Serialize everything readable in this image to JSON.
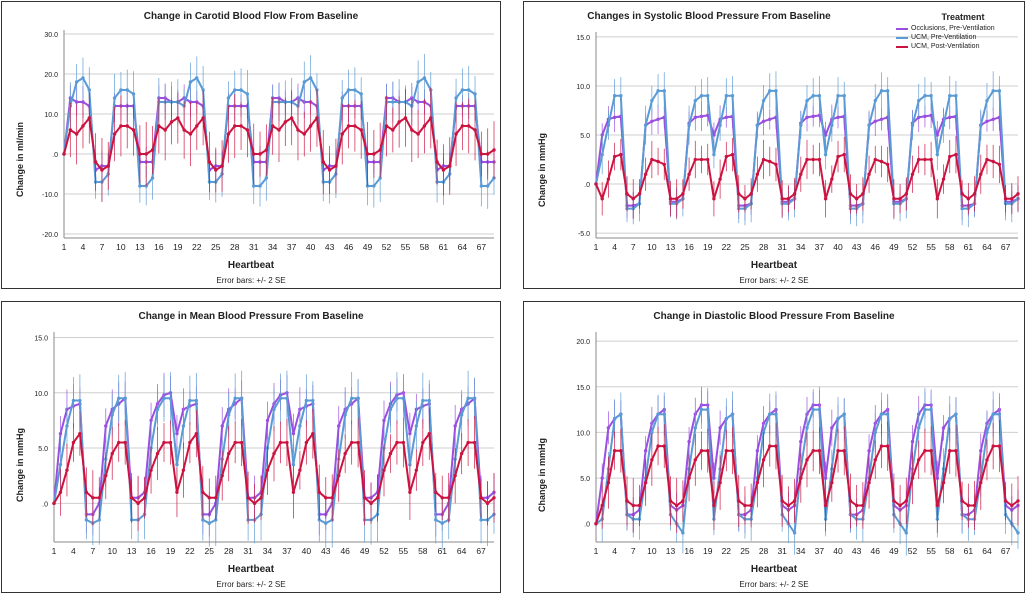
{
  "colors": {
    "series": [
      "#9b4fe0",
      "#5b9bd5",
      "#cc1340"
    ],
    "grid": "#cfcfcf",
    "text": "#222222"
  },
  "legend": {
    "title": "Treatment",
    "items": [
      "Occlusions, Pre-Ventilation",
      "UCM, Pre-Ventilation",
      "UCM, Post-Ventilation"
    ]
  },
  "chart_data": [
    {
      "type": "line",
      "title": "Change in Carotid Blood Flow From Baseline",
      "xlabel": "Heartbeat",
      "ylabel": "Change in ml/min",
      "note": "Error bars: +/- 2 SE",
      "yticks": [
        30,
        20,
        10,
        0,
        -10,
        -20
      ],
      "ytick_labels": [
        "30.0",
        "20.0",
        "10.0",
        ".0",
        "-10.0",
        "-20.0"
      ],
      "ylim": [
        -21,
        31
      ],
      "xticks": [
        "1",
        "4",
        "7",
        "10",
        "13",
        "16",
        "19",
        "22",
        "25",
        "28",
        "31",
        "34",
        "37",
        "40",
        "43",
        "46",
        "49",
        "52",
        "55",
        "58",
        "61",
        "64",
        "67"
      ],
      "x_range": [
        1,
        69
      ],
      "show_legend": false,
      "series": [
        {
          "name": "Occlusions, Pre-Ventilation",
          "pattern": [
            0,
            14,
            13,
            13,
            12,
            -4,
            -3,
            -3,
            12,
            12,
            12,
            12,
            -2,
            -2,
            -2,
            14,
            14,
            13,
            13
          ],
          "error": 4
        },
        {
          "name": "UCM, Pre-Ventilation",
          "pattern": [
            0,
            12,
            18,
            19,
            16,
            -7,
            -7,
            -5,
            14,
            16,
            16,
            15,
            -8,
            -8,
            -6,
            13,
            13,
            13,
            13
          ],
          "error": 6
        },
        {
          "name": "UCM, Post-Ventilation",
          "pattern": [
            0,
            6,
            5,
            7,
            9,
            -2,
            -4,
            -3,
            5,
            7,
            7,
            6,
            0,
            0,
            1,
            7,
            6,
            8,
            9
          ],
          "error": 8
        }
      ]
    },
    {
      "type": "line",
      "title": "Changes in Systolic Blood Pressure From Baseline",
      "xlabel": "Heartbeat",
      "ylabel": "Change in mmHg",
      "note": "Error bars: +/- 2 SE",
      "yticks": [
        15,
        10,
        5,
        0,
        -5
      ],
      "ytick_labels": [
        "15.0",
        "10.0",
        "5.0",
        ".0",
        "-5.0"
      ],
      "ylim": [
        -5.5,
        15.5
      ],
      "xticks": [
        "1",
        "4",
        "7",
        "10",
        "13",
        "16",
        "19",
        "22",
        "25",
        "28",
        "31",
        "34",
        "37",
        "40",
        "43",
        "46",
        "49",
        "52",
        "55",
        "58",
        "61",
        "64",
        "67"
      ],
      "x_range": [
        1,
        69
      ],
      "show_legend": true,
      "series": [
        {
          "name": "Occlusions, Pre-Ventilation",
          "pattern": [
            0,
            5,
            6.6,
            6.8,
            6.9,
            -2.2,
            -2.2,
            -2.0,
            6.0,
            6.4,
            6.6,
            6.8,
            -1.8,
            -1.8,
            -1.5,
            6.2,
            6.8,
            6.9,
            7.0
          ],
          "error": 1.5
        },
        {
          "name": "UCM, Pre-Ventilation",
          "pattern": [
            0,
            3,
            6.0,
            9.0,
            9.0,
            -2.5,
            -2.5,
            -2.0,
            6.0,
            8.5,
            9.5,
            9.5,
            -2.0,
            -2.0,
            -1.5,
            6.0,
            8.5,
            9.0,
            9.0
          ],
          "error": 2.0
        },
        {
          "name": "UCM, Post-Ventilation",
          "pattern": [
            0,
            -1.5,
            0.5,
            2.8,
            3.0,
            -1.0,
            -1.5,
            -1.0,
            1.0,
            2.5,
            2.3,
            2.0,
            -1.5,
            -1.5,
            -1.0,
            1.0,
            2.5,
            2.5,
            2.5
          ],
          "error": 2.0
        }
      ]
    },
    {
      "type": "line",
      "title": "Change in Mean Blood Pressure From Baseline",
      "xlabel": "Heartbeat",
      "ylabel": "Change in mmHg",
      "note": "Error bars: +/- 2 SE",
      "yticks": [
        15,
        10,
        5,
        0
      ],
      "ytick_labels": [
        "15.0",
        "10.0",
        "5.0",
        ".0"
      ],
      "ylim": [
        -3.5,
        15.5
      ],
      "xticks": [
        "1",
        "4",
        "7",
        "10",
        "13",
        "16",
        "19",
        "22",
        "25",
        "28",
        "31",
        "34",
        "37",
        "40",
        "43",
        "46",
        "49",
        "52",
        "55",
        "58",
        "61",
        "64",
        "67"
      ],
      "x_range": [
        1,
        69
      ],
      "show_legend": false,
      "series": [
        {
          "name": "Occlusions, Pre-Ventilation",
          "pattern": [
            0,
            6.3,
            8.5,
            8.8,
            9.0,
            -1.0,
            -1.0,
            0.0,
            7.0,
            8.5,
            9.0,
            9.5,
            0.5,
            0.5,
            1.0,
            7.5,
            9.0,
            9.8,
            10.0
          ],
          "error": 2.0
        },
        {
          "name": "UCM, Pre-Ventilation",
          "pattern": [
            0,
            3.5,
            7.0,
            9.3,
            9.3,
            -1.5,
            -1.8,
            -1.5,
            4.0,
            8.0,
            9.5,
            9.5,
            -1.5,
            -1.5,
            -1.0,
            5.0,
            8.5,
            9.5,
            9.5
          ],
          "error": 2.5
        },
        {
          "name": "UCM, Post-Ventilation",
          "pattern": [
            0,
            1.0,
            3.0,
            5.5,
            6.3,
            1.0,
            0.5,
            0.5,
            2.5,
            4.5,
            5.5,
            5.5,
            0.5,
            0.0,
            0.5,
            3.0,
            4.5,
            5.5,
            5.5
          ],
          "error": 2.5
        }
      ]
    },
    {
      "type": "line",
      "title": "Change in Diastolic Blood Pressure From Baseline",
      "xlabel": "Heartbeat",
      "ylabel": "Change in mmHg",
      "note": "Error bars: +/- 2 SE",
      "yticks": [
        20,
        15,
        10,
        5,
        0
      ],
      "ytick_labels": [
        "20.0",
        "15.0",
        "10.0",
        "5.0",
        ".0"
      ],
      "ylim": [
        -2,
        21
      ],
      "xticks": [
        "1",
        "4",
        "7",
        "10",
        "13",
        "16",
        "19",
        "22",
        "25",
        "28",
        "31",
        "34",
        "37",
        "40",
        "43",
        "46",
        "49",
        "52",
        "55",
        "58",
        "61",
        "64",
        "67"
      ],
      "x_range": [
        1,
        69
      ],
      "show_legend": false,
      "series": [
        {
          "name": "Occlusions, Pre-Ventilation",
          "pattern": [
            0,
            5.0,
            10.5,
            11.5,
            12.0,
            1.0,
            1.0,
            1.5,
            8.0,
            11.0,
            12.0,
            12.5,
            2.0,
            1.5,
            2.0,
            9.0,
            12.0,
            13.0,
            13.0
          ],
          "error": 2.0
        },
        {
          "name": "UCM, Pre-Ventilation",
          "pattern": [
            0,
            0.5,
            6.0,
            11.5,
            12.0,
            1.0,
            0.5,
            0.5,
            5.0,
            10.0,
            12.0,
            12.0,
            1.0,
            0.0,
            -1.0,
            6.0,
            10.5,
            12.5,
            12.5
          ],
          "error": 2.5
        },
        {
          "name": "UCM, Post-Ventilation",
          "pattern": [
            0,
            2.0,
            4.5,
            8.0,
            8.0,
            2.5,
            2.0,
            2.0,
            4.5,
            7.0,
            8.5,
            8.5,
            2.5,
            2.0,
            2.5,
            5.0,
            7.0,
            8.0,
            8.0
          ],
          "error": 3.0
        }
      ]
    }
  ]
}
